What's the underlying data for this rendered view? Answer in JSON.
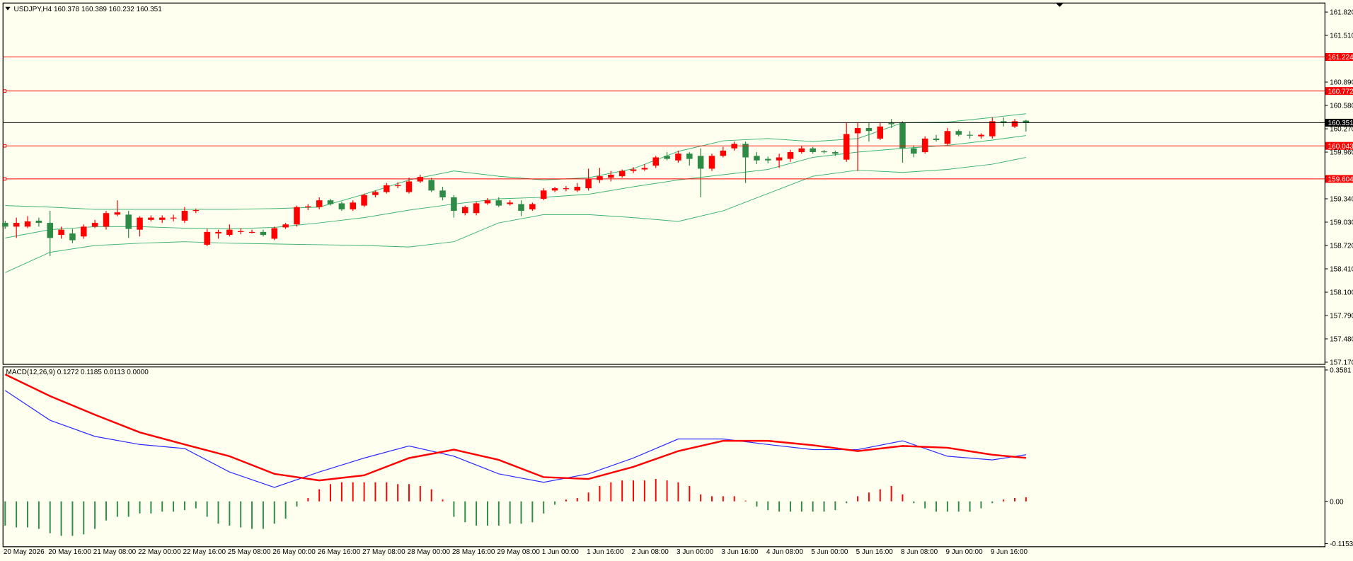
{
  "chart_data": [
    {
      "type": "candlestick",
      "title": "USDJPY,H4",
      "categories": [
        "20 May 2026",
        null,
        null,
        null,
        "20 May 16:00",
        null,
        null,
        null,
        "21 May 08:00",
        null,
        null,
        null,
        "22 May 00:00",
        null,
        null,
        null,
        "22 May 16:00",
        null,
        null,
        null,
        "25 May 08:00",
        null,
        null,
        null,
        "26 May 00:00",
        null,
        null,
        null,
        "26 May 16:00",
        null,
        null,
        null,
        "27 May 08:00",
        null,
        null,
        null,
        "28 May 00:00",
        null,
        null,
        null,
        "28 May 16:00",
        null,
        null,
        null,
        "29 May 08:00",
        null,
        null,
        null,
        "1 Jun 00:00",
        null,
        null,
        null,
        "1 Jun 16:00",
        null,
        null,
        null,
        "2 Jun 08:00",
        null,
        null,
        null,
        "3 Jun 00:00",
        null,
        null,
        null,
        "3 Jun 16:00",
        null,
        null,
        null,
        "4 Jun 08:00",
        null,
        null,
        null,
        "5 Jun 00:00",
        null,
        null,
        null,
        "5 Jun 16:00",
        null,
        null,
        null,
        "8 Jun 08:00",
        null,
        null,
        null,
        "9 Jun 00:00",
        null,
        null,
        null,
        "9 Jun 16:00",
        null,
        null,
        null
      ],
      "open": [
        159.02,
        158.97,
        158.97,
        159.05,
        159.02,
        158.86,
        158.88,
        158.84,
        158.97,
        158.97,
        159.13,
        159.13,
        158.93,
        159.06,
        159.06,
        159.08,
        159.05,
        159.18,
        158.73,
        158.88,
        158.86,
        158.9,
        158.9,
        158.9,
        158.81,
        158.96,
        159.0,
        159.23,
        159.23,
        159.32,
        159.28,
        159.2,
        159.25,
        159.39,
        159.43,
        159.51,
        159.43,
        159.57,
        159.59,
        159.45,
        159.36,
        159.15,
        159.15,
        159.28,
        159.32,
        159.27,
        159.27,
        159.2,
        159.34,
        159.45,
        159.47,
        159.45,
        159.48,
        159.59,
        159.62,
        159.64,
        159.71,
        159.73,
        159.78,
        159.91,
        159.85,
        159.94,
        159.91,
        159.74,
        159.91,
        160.01,
        160.07,
        159.91,
        159.87,
        159.85,
        159.87,
        159.96,
        160.01,
        159.97,
        159.96,
        159.86,
        160.21,
        160.28,
        160.14,
        160.35,
        160.35,
        160.01,
        159.96,
        160.14,
        160.07,
        160.24,
        160.19,
        160.17,
        160.17,
        160.37,
        160.3,
        160.378
      ],
      "high": [
        159.05,
        159.09,
        159.11,
        159.09,
        159.18,
        158.97,
        158.94,
        159.0,
        159.06,
        159.18,
        159.32,
        159.18,
        159.11,
        159.12,
        159.12,
        159.13,
        159.23,
        159.21,
        158.94,
        158.93,
        159.0,
        158.95,
        158.93,
        158.93,
        158.97,
        159.02,
        159.25,
        159.27,
        159.36,
        159.34,
        159.3,
        159.32,
        159.41,
        159.45,
        159.55,
        159.56,
        159.62,
        159.66,
        159.62,
        159.5,
        159.39,
        159.25,
        159.3,
        159.35,
        159.36,
        159.32,
        159.32,
        159.29,
        159.48,
        159.5,
        159.51,
        159.55,
        159.74,
        159.75,
        159.71,
        159.73,
        159.76,
        159.8,
        159.91,
        159.96,
        159.98,
        159.96,
        160.01,
        159.94,
        160.03,
        160.1,
        160.1,
        159.96,
        159.9,
        159.94,
        159.99,
        160.04,
        160.03,
        159.99,
        159.98,
        160.35,
        160.35,
        160.35,
        160.35,
        160.4,
        160.37,
        160.05,
        160.17,
        160.19,
        160.28,
        160.26,
        160.24,
        160.21,
        160.42,
        160.42,
        160.4,
        160.389
      ],
      "low": [
        158.94,
        158.82,
        158.95,
        158.97,
        158.58,
        158.81,
        158.75,
        158.81,
        158.95,
        158.93,
        159.11,
        158.82,
        158.84,
        159.04,
        159.02,
        159.04,
        159.02,
        159.15,
        158.71,
        158.81,
        158.84,
        158.87,
        158.88,
        158.84,
        158.79,
        158.94,
        158.97,
        159.19,
        159.2,
        159.25,
        159.18,
        159.18,
        159.23,
        159.36,
        159.41,
        159.48,
        159.41,
        159.55,
        159.43,
        159.32,
        159.09,
        159.12,
        159.12,
        159.26,
        159.23,
        159.25,
        159.11,
        159.18,
        159.32,
        159.43,
        159.44,
        159.43,
        159.45,
        159.55,
        159.57,
        159.62,
        159.68,
        159.71,
        159.75,
        159.85,
        159.82,
        159.78,
        159.36,
        159.71,
        159.89,
        159.98,
        159.55,
        159.8,
        159.81,
        159.75,
        159.83,
        159.94,
        159.94,
        159.94,
        159.91,
        159.83,
        159.71,
        160.1,
        160.12,
        160.28,
        159.82,
        159.89,
        159.94,
        160.1,
        160.05,
        160.17,
        160.14,
        160.14,
        160.14,
        160.3,
        160.28,
        160.232
      ],
      "close": [
        158.97,
        159.02,
        159.04,
        159.02,
        158.82,
        158.93,
        158.79,
        158.97,
        159.02,
        159.15,
        159.16,
        158.94,
        159.09,
        159.09,
        159.09,
        159.09,
        159.18,
        159.19,
        158.9,
        158.9,
        158.93,
        158.91,
        158.9,
        158.86,
        158.95,
        159.0,
        159.23,
        159.24,
        159.32,
        159.27,
        159.2,
        159.29,
        159.39,
        159.43,
        159.52,
        159.52,
        159.57,
        159.63,
        159.45,
        159.36,
        159.18,
        159.23,
        159.28,
        159.32,
        159.25,
        159.29,
        159.18,
        159.27,
        159.45,
        159.48,
        159.48,
        159.5,
        159.6,
        159.64,
        159.66,
        159.71,
        159.73,
        159.75,
        159.89,
        159.87,
        159.94,
        159.87,
        159.74,
        159.91,
        159.98,
        160.07,
        159.89,
        159.85,
        159.85,
        159.89,
        159.96,
        160.01,
        159.96,
        159.96,
        159.94,
        160.2,
        160.28,
        160.24,
        160.3,
        160.33,
        160.01,
        159.94,
        160.14,
        160.12,
        160.24,
        160.19,
        160.18,
        160.19,
        160.37,
        160.35,
        160.37,
        160.351
      ],
      "up_color": "#ff0000",
      "down_color": "#2e8b46",
      "overlays": {
        "x": [
          0,
          4,
          8,
          12,
          16,
          20,
          24,
          28,
          32,
          36,
          40,
          44,
          48,
          52,
          56,
          60,
          64,
          68,
          72,
          76,
          80,
          84,
          88,
          91
        ],
        "series": [
          {
            "color": "#3cb371",
            "values": [
              159.25,
              159.23,
              159.2,
              159.2,
              159.2,
              159.2,
              159.21,
              159.23,
              159.4,
              159.59,
              159.71,
              159.64,
              159.59,
              159.62,
              159.74,
              159.97,
              160.11,
              160.14,
              160.1,
              160.14,
              160.35,
              160.36,
              160.42,
              160.47
            ]
          },
          {
            "color": "#3cb371",
            "values": [
              158.82,
              158.93,
              158.97,
              158.97,
              158.95,
              158.94,
              158.96,
              159.02,
              159.09,
              159.19,
              159.27,
              159.34,
              159.36,
              159.4,
              159.5,
              159.59,
              159.66,
              159.73,
              159.89,
              159.96,
              160.01,
              160.05,
              160.12,
              160.18
            ]
          },
          {
            "color": "#3cb371",
            "values": [
              158.36,
              158.63,
              158.72,
              158.75,
              158.77,
              158.75,
              158.74,
              158.73,
              158.72,
              158.7,
              158.77,
              159.02,
              159.13,
              159.13,
              159.09,
              159.04,
              159.18,
              159.41,
              159.64,
              159.72,
              159.69,
              159.73,
              159.8,
              159.89
            ]
          }
        ]
      },
      "levels": [
        {
          "value": 161.224,
          "color": "#ff0000",
          "handle": false
        },
        {
          "value": 160.772,
          "color": "#ff0000",
          "handle": true
        },
        {
          "value": 160.351,
          "color": "#000000",
          "handle": false
        },
        {
          "value": 160.043,
          "color": "#ff0000",
          "handle": true
        },
        {
          "value": 159.604,
          "color": "#ff0000",
          "handle": true
        }
      ],
      "ylim": [
        157.147,
        161.946
      ],
      "yticks": [
        {
          "value": 161.82,
          "label": "161.820"
        },
        {
          "value": 161.51,
          "label": "161.510"
        },
        {
          "value": 160.89,
          "label": "160.890"
        },
        {
          "value": 160.58,
          "label": "160.580"
        },
        {
          "value": 160.27,
          "label": "160.270"
        },
        {
          "value": 159.96,
          "label": "159.960"
        },
        {
          "value": 159.34,
          "label": "159.340"
        },
        {
          "value": 159.03,
          "label": "159.030"
        },
        {
          "value": 158.72,
          "label": "158.720"
        },
        {
          "value": 158.41,
          "label": "158.410"
        },
        {
          "value": 158.1,
          "label": "158.100"
        },
        {
          "value": 157.79,
          "label": "157.790"
        },
        {
          "value": 157.48,
          "label": "157.480"
        },
        {
          "value": 157.17,
          "label": "157.170"
        }
      ]
    },
    {
      "type": "macd",
      "title": "MACD(12,26,9)",
      "header_extra": "0.0000",
      "histogram": [
        -0.066,
        -0.071,
        -0.071,
        -0.075,
        -0.087,
        -0.094,
        -0.094,
        -0.09,
        -0.075,
        -0.052,
        -0.042,
        -0.042,
        -0.033,
        -0.033,
        -0.028,
        -0.028,
        -0.024,
        -0.019,
        -0.042,
        -0.061,
        -0.066,
        -0.071,
        -0.075,
        -0.075,
        -0.061,
        -0.047,
        -0.014,
        0.009,
        0.033,
        0.047,
        0.052,
        0.052,
        0.052,
        0.052,
        0.052,
        0.047,
        0.047,
        0.042,
        0.033,
        0.005,
        -0.042,
        -0.057,
        -0.066,
        -0.066,
        -0.066,
        -0.061,
        -0.061,
        -0.057,
        -0.033,
        -0.009,
        0.005,
        0.009,
        0.024,
        0.042,
        0.052,
        0.057,
        0.057,
        0.057,
        0.061,
        0.057,
        0.052,
        0.042,
        0.019,
        0.014,
        0.014,
        0.014,
        0.002,
        -0.014,
        -0.024,
        -0.028,
        -0.028,
        -0.028,
        -0.028,
        -0.028,
        -0.024,
        -0.005,
        0.014,
        0.024,
        0.033,
        0.042,
        0.019,
        -0.005,
        -0.019,
        -0.028,
        -0.028,
        -0.028,
        -0.028,
        -0.019,
        -0.005,
        0.005,
        0.009,
        0.0113
      ],
      "positive_color": "#ff0000",
      "negative_color": "#2e8b46",
      "x": [
        0,
        4,
        8,
        12,
        16,
        20,
        24,
        28,
        32,
        36,
        40,
        44,
        48,
        52,
        56,
        60,
        64,
        68,
        72,
        76,
        80,
        84,
        88,
        91
      ],
      "series": [
        {
          "color": "#2b2bff",
          "width": 1,
          "values": [
            0.302,
            0.221,
            0.177,
            0.155,
            0.144,
            0.08,
            0.038,
            0.08,
            0.118,
            0.151,
            0.123,
            0.075,
            0.052,
            0.075,
            0.118,
            0.17,
            0.17,
            0.155,
            0.141,
            0.141,
            0.165,
            0.123,
            0.113,
            0.1272
          ]
        },
        {
          "color": "#ff0000",
          "width": 2,
          "values": [
            0.346,
            0.287,
            0.236,
            0.188,
            0.155,
            0.123,
            0.075,
            0.057,
            0.071,
            0.118,
            0.141,
            0.113,
            0.066,
            0.061,
            0.094,
            0.137,
            0.165,
            0.165,
            0.153,
            0.137,
            0.151,
            0.146,
            0.127,
            0.1185
          ]
        }
      ],
      "ylim": [
        -0.1225,
        0.3675
      ],
      "yticks": [
        0.3581,
        {
          "value": 0,
          "label": "0.00"
        },
        -0.1153
      ]
    }
  ]
}
